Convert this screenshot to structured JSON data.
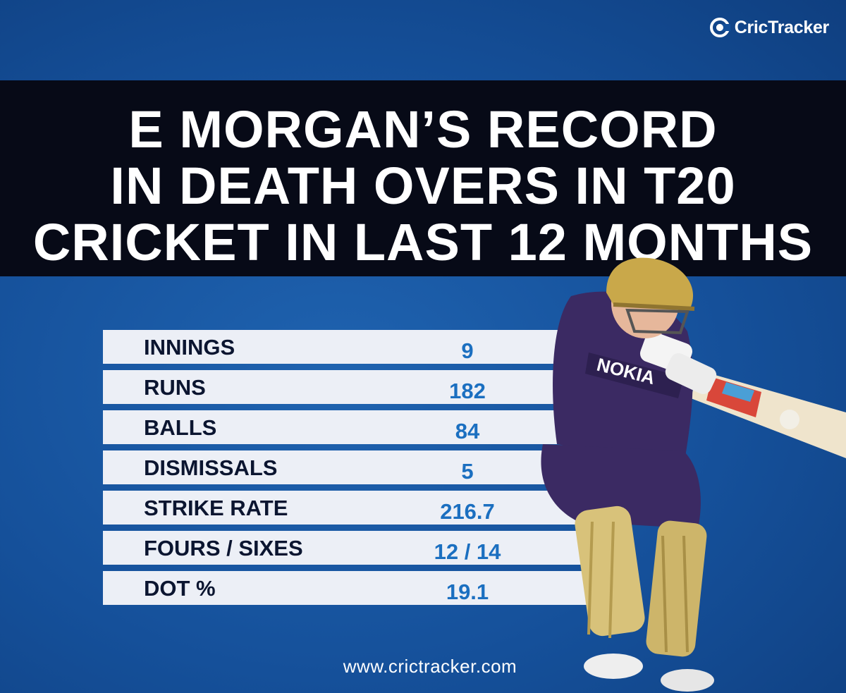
{
  "brand": {
    "name": "CricTracker"
  },
  "title": {
    "line1": "E MORGAN’S RECORD",
    "line2": "IN DEATH OVERS IN T20",
    "line3": "CRICKET IN LAST 12 MONTHS"
  },
  "stats": [
    {
      "label": "INNINGS",
      "value": "9"
    },
    {
      "label": "RUNS",
      "value": "182"
    },
    {
      "label": "BALLS",
      "value": "84"
    },
    {
      "label": "DISMISSALS",
      "value": "5"
    },
    {
      "label": "STRIKE RATE",
      "value": "216.7"
    },
    {
      "label": "FOURS / SIXES",
      "value": "12 / 14"
    },
    {
      "label": "DOT %",
      "value": "19.1"
    }
  ],
  "website": "www.crictracker.com",
  "colors": {
    "background": "#15509a",
    "title_band": "#070a17",
    "row_bg": "#eceff6",
    "label_text": "#0b1530",
    "value_text": "#1b6fc0",
    "jersey": "#3b2a63",
    "helmet": "#c9a84a"
  }
}
